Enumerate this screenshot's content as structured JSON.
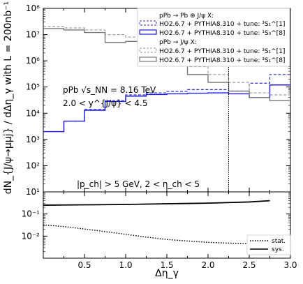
{
  "chart_data": [
    {
      "type": "line",
      "yscale": "log",
      "xlim": [
        0,
        3
      ],
      "ylim": [
        10,
        100000000
      ],
      "ylabel": "dN_{J/ψ→μμj} / dΔη_γ with L = 200nb⁻¹",
      "yticks": [
        "10¹",
        "10²",
        "10³",
        "10⁴",
        "10⁵",
        "10⁶",
        "10⁷",
        "10⁸"
      ],
      "bin_edges": [
        0,
        0.25,
        0.5,
        0.75,
        1.0,
        1.25,
        1.5,
        1.75,
        2.0,
        2.25,
        2.5,
        2.75,
        3.0
      ],
      "legend": {
        "position": "top-right",
        "header1": "pPb → Pb ⊕ J/ψ X:",
        "header2": "pPb → J/ψ X:"
      },
      "series": [
        {
          "name": "HO2.6.7 + PYTHIA8.310 + tune: ³S₁^[1]",
          "group": 1,
          "style": "dashed",
          "color": "#3333cc",
          "values": [
            2000,
            5000,
            14000,
            30000,
            50000,
            60000,
            68000,
            80000,
            80000,
            70000,
            140000,
            300000
          ]
        },
        {
          "name": "HO2.6.7 + PYTHIA8.310 + tune: ¹S₀^[8]",
          "group": 1,
          "style": "solid",
          "color": "#1a1aee",
          "values": [
            2000,
            5000,
            13000,
            28000,
            45000,
            52000,
            55000,
            58000,
            60000,
            55000,
            40000,
            120000
          ]
        },
        {
          "name": "HO2.6.7 + PYTHIA8.310 + tune: ³S₁^[1]",
          "group": 2,
          "style": "dashed",
          "color": "#999999",
          "values": [
            20000000,
            18000000,
            15000000,
            10000000,
            8000000,
            4000000,
            1800000,
            600000,
            300000,
            150000,
            60000,
            50000
          ]
        },
        {
          "name": "HO2.6.7 + PYTHIA8.310 + tune: ³S₁^[8]",
          "group": 2,
          "style": "solid",
          "color": "#777777",
          "values": [
            17000000,
            15000000,
            12000000,
            5000000,
            5500000,
            3000000,
            1200000,
            300000,
            150000,
            70000,
            40000,
            30000
          ]
        }
      ],
      "vline_x": 2.25,
      "annotations": {
        "system": "pPb √s_NN = 8.16 TeV",
        "rapidity": "2.0 < y^{J/ψ} < 4.5",
        "cuts": "|p_ch| > 5 GeV, 2 < η_ch < 5"
      }
    },
    {
      "type": "line",
      "yscale": "log",
      "xlim": [
        0,
        3
      ],
      "ylim": [
        0.001,
        1
      ],
      "xlabel": "Δη_γ",
      "xticks": [
        "0.5",
        "1.0",
        "1.5",
        "2.0",
        "2.5",
        "3.0"
      ],
      "yticks": [
        "10⁻²",
        "10⁻¹"
      ],
      "legend": {
        "position": "bottom-right"
      },
      "series": [
        {
          "name": "stat.",
          "style": "dotted",
          "x": [
            0,
            0.25,
            0.5,
            0.75,
            1.0,
            1.25,
            1.5,
            1.75,
            2.0,
            2.25,
            2.5,
            2.75
          ],
          "values": [
            0.032,
            0.027,
            0.021,
            0.016,
            0.012,
            0.009,
            0.007,
            0.006,
            0.0052,
            0.0048,
            0.0046,
            0.0047
          ]
        },
        {
          "name": "sys.",
          "style": "solid",
          "x": [
            0,
            0.5,
            1.0,
            1.5,
            2.0,
            2.5,
            2.75
          ],
          "values": [
            0.25,
            0.26,
            0.27,
            0.29,
            0.31,
            0.35,
            0.4
          ]
        }
      ]
    }
  ]
}
